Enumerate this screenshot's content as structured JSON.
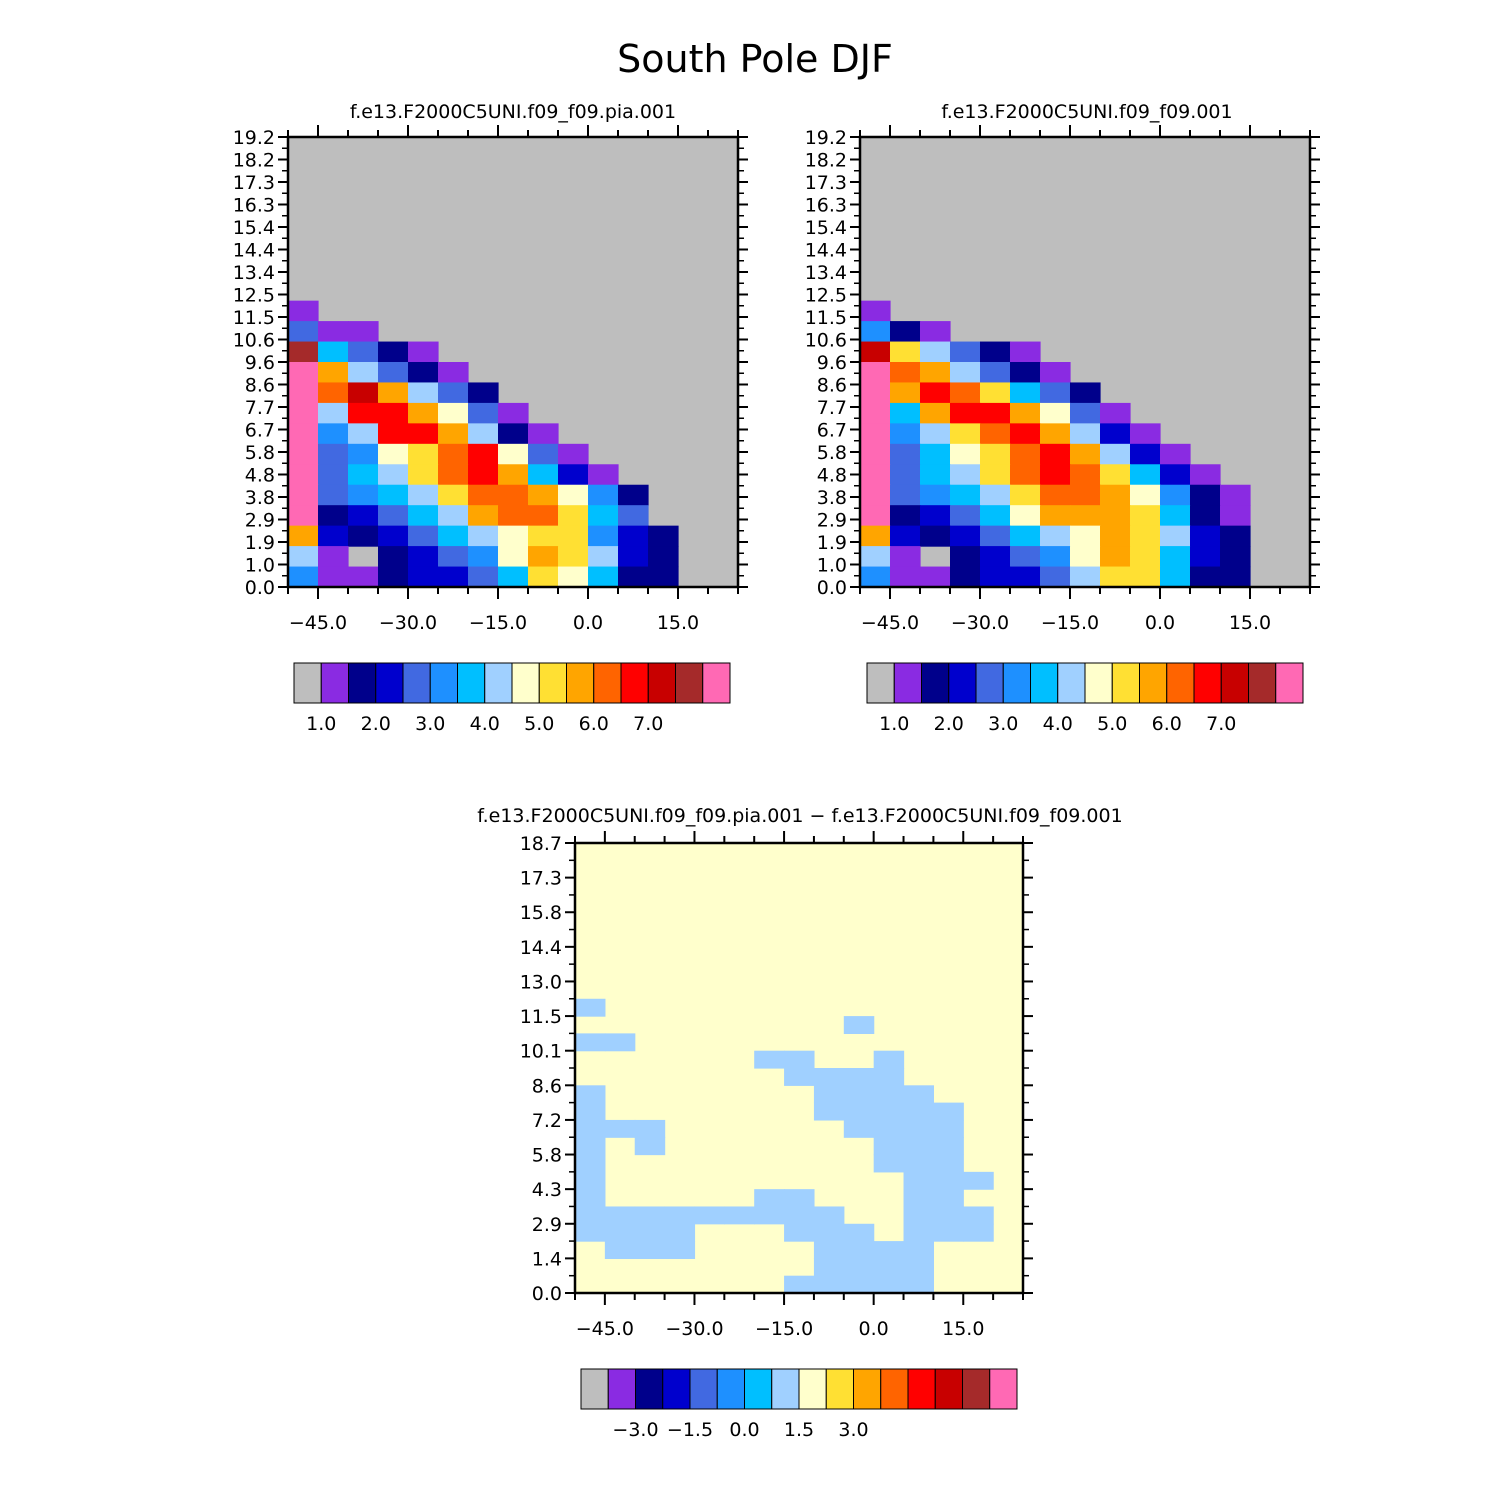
{
  "figure": {
    "title": "South Pole DJF"
  },
  "colors": {
    "palette": [
      "#bebebe",
      "#8a2be2",
      "#00008b",
      "#0000cd",
      "#4169e1",
      "#1e90ff",
      "#00bfff",
      "#a0d0ff",
      "#ffffcc",
      "#ffe033",
      "#ffa500",
      "#ff6400",
      "#ff0000",
      "#c80000",
      "#a52a2a",
      "#ff69b4"
    ],
    "gray": "#bebebe"
  },
  "chart_data": [
    {
      "type": "heatmap",
      "id": "panel-pia",
      "title": "f.e13.F2000C5UNI.f09_f09.pia.001",
      "xticks": [
        "−45.0",
        "−30.0",
        "−15.0",
        "0.0",
        "15.0"
      ],
      "yticks": [
        "0.0",
        "1.0",
        "1.9",
        "2.9",
        "3.8",
        "4.8",
        "5.8",
        "6.7",
        "7.7",
        "8.6",
        "9.6",
        "10.6",
        "11.5",
        "12.5",
        "13.4",
        "14.4",
        "15.4",
        "16.3",
        "17.3",
        "18.2",
        "19.2"
      ],
      "xrange": [
        -50,
        25
      ],
      "yrange": [
        0,
        19.2
      ],
      "colorbar_labels": [
        "1.0",
        "2.0",
        "3.0",
        "4.0",
        "5.0",
        "6.0",
        "7.0"
      ],
      "grid_note": "rows listed from top (y=19.2) to bottom (y=0.0); each row has 15 longitude bins; values are palette indices",
      "grid": [
        [
          0,
          0,
          0,
          0,
          0,
          0,
          0,
          0,
          0,
          0,
          0,
          0,
          0,
          0,
          0
        ],
        [
          0,
          0,
          0,
          0,
          0,
          0,
          0,
          0,
          0,
          0,
          0,
          0,
          0,
          0,
          0
        ],
        [
          0,
          0,
          0,
          0,
          0,
          0,
          0,
          0,
          0,
          0,
          0,
          0,
          0,
          0,
          0
        ],
        [
          0,
          0,
          0,
          0,
          0,
          0,
          0,
          0,
          0,
          0,
          0,
          0,
          0,
          0,
          0
        ],
        [
          0,
          0,
          0,
          0,
          0,
          0,
          0,
          0,
          0,
          0,
          0,
          0,
          0,
          0,
          0
        ],
        [
          0,
          0,
          0,
          0,
          0,
          0,
          0,
          0,
          0,
          0,
          0,
          0,
          0,
          0,
          0
        ],
        [
          0,
          0,
          0,
          0,
          0,
          0,
          0,
          0,
          0,
          0,
          0,
          0,
          0,
          0,
          0
        ],
        [
          0,
          0,
          0,
          0,
          0,
          0,
          0,
          0,
          0,
          0,
          0,
          0,
          0,
          0,
          0
        ],
        [
          1,
          0,
          0,
          0,
          0,
          0,
          0,
          0,
          0,
          0,
          0,
          0,
          0,
          0,
          0
        ],
        [
          4,
          1,
          1,
          0,
          0,
          0,
          0,
          0,
          0,
          0,
          0,
          0,
          0,
          0,
          0
        ],
        [
          14,
          6,
          4,
          2,
          1,
          0,
          0,
          0,
          0,
          0,
          0,
          0,
          0,
          0,
          0
        ],
        [
          15,
          10,
          7,
          4,
          2,
          1,
          0,
          0,
          0,
          0,
          0,
          0,
          0,
          0,
          0
        ],
        [
          15,
          11,
          13,
          10,
          7,
          4,
          2,
          0,
          0,
          0,
          0,
          0,
          0,
          0,
          0
        ],
        [
          15,
          7,
          12,
          12,
          10,
          8,
          4,
          1,
          0,
          0,
          0,
          0,
          0,
          0,
          0
        ],
        [
          15,
          5,
          7,
          12,
          12,
          10,
          7,
          2,
          1,
          0,
          0,
          0,
          0,
          0,
          0
        ],
        [
          15,
          4,
          5,
          8,
          9,
          11,
          12,
          8,
          4,
          1,
          0,
          0,
          0,
          0,
          0
        ],
        [
          15,
          4,
          6,
          7,
          9,
          11,
          12,
          10,
          6,
          3,
          1,
          0,
          0,
          0,
          0
        ],
        [
          15,
          4,
          5,
          6,
          7,
          9,
          11,
          11,
          10,
          8,
          5,
          2,
          0,
          0,
          0
        ],
        [
          15,
          2,
          3,
          4,
          6,
          7,
          10,
          11,
          11,
          9,
          6,
          4,
          0,
          0,
          0
        ],
        [
          10,
          3,
          2,
          3,
          4,
          6,
          7,
          8,
          9,
          9,
          5,
          3,
          2,
          0,
          0
        ],
        [
          7,
          1,
          0,
          2,
          3,
          4,
          5,
          8,
          10,
          9,
          7,
          3,
          2,
          0,
          0
        ],
        [
          5,
          1,
          1,
          2,
          3,
          3,
          4,
          6,
          9,
          8,
          6,
          2,
          2,
          0,
          0
        ]
      ]
    },
    {
      "type": "heatmap",
      "id": "panel-ctl",
      "title": "f.e13.F2000C5UNI.f09_f09.001",
      "xticks": [
        "−45.0",
        "−30.0",
        "−15.0",
        "0.0",
        "15.0"
      ],
      "yticks": [
        "0.0",
        "1.0",
        "1.9",
        "2.9",
        "3.8",
        "4.8",
        "5.8",
        "6.7",
        "7.7",
        "8.6",
        "9.6",
        "10.6",
        "11.5",
        "12.5",
        "13.4",
        "14.4",
        "15.4",
        "16.3",
        "17.3",
        "18.2",
        "19.2"
      ],
      "xrange": [
        -50,
        25
      ],
      "yrange": [
        0,
        19.2
      ],
      "colorbar_labels": [
        "1.0",
        "2.0",
        "3.0",
        "4.0",
        "5.0",
        "6.0",
        "7.0"
      ],
      "grid_note": "rows listed from top (y=19.2) to bottom (y=0.0); each row has 15 longitude bins; values are palette indices",
      "grid": [
        [
          0,
          0,
          0,
          0,
          0,
          0,
          0,
          0,
          0,
          0,
          0,
          0,
          0,
          0,
          0
        ],
        [
          0,
          0,
          0,
          0,
          0,
          0,
          0,
          0,
          0,
          0,
          0,
          0,
          0,
          0,
          0
        ],
        [
          0,
          0,
          0,
          0,
          0,
          0,
          0,
          0,
          0,
          0,
          0,
          0,
          0,
          0,
          0
        ],
        [
          0,
          0,
          0,
          0,
          0,
          0,
          0,
          0,
          0,
          0,
          0,
          0,
          0,
          0,
          0
        ],
        [
          0,
          0,
          0,
          0,
          0,
          0,
          0,
          0,
          0,
          0,
          0,
          0,
          0,
          0,
          0
        ],
        [
          0,
          0,
          0,
          0,
          0,
          0,
          0,
          0,
          0,
          0,
          0,
          0,
          0,
          0,
          0
        ],
        [
          0,
          0,
          0,
          0,
          0,
          0,
          0,
          0,
          0,
          0,
          0,
          0,
          0,
          0,
          0
        ],
        [
          0,
          0,
          0,
          0,
          0,
          0,
          0,
          0,
          0,
          0,
          0,
          0,
          0,
          0,
          0
        ],
        [
          1,
          0,
          0,
          0,
          0,
          0,
          0,
          0,
          0,
          0,
          0,
          0,
          0,
          0,
          0
        ],
        [
          5,
          2,
          1,
          0,
          0,
          0,
          0,
          0,
          0,
          0,
          0,
          0,
          0,
          0,
          0
        ],
        [
          13,
          9,
          7,
          4,
          2,
          1,
          0,
          0,
          0,
          0,
          0,
          0,
          0,
          0,
          0
        ],
        [
          15,
          11,
          10,
          7,
          4,
          2,
          1,
          0,
          0,
          0,
          0,
          0,
          0,
          0,
          0
        ],
        [
          15,
          10,
          12,
          11,
          9,
          6,
          4,
          2,
          0,
          0,
          0,
          0,
          0,
          0,
          0
        ],
        [
          15,
          6,
          10,
          12,
          12,
          10,
          8,
          4,
          1,
          0,
          0,
          0,
          0,
          0,
          0
        ],
        [
          15,
          5,
          7,
          9,
          11,
          12,
          10,
          7,
          3,
          1,
          0,
          0,
          0,
          0,
          0
        ],
        [
          15,
          4,
          6,
          8,
          9,
          11,
          12,
          10,
          7,
          3,
          1,
          0,
          0,
          0,
          0
        ],
        [
          15,
          4,
          6,
          7,
          9,
          11,
          12,
          11,
          9,
          6,
          3,
          1,
          0,
          0,
          0
        ],
        [
          15,
          4,
          5,
          6,
          7,
          9,
          11,
          11,
          10,
          8,
          5,
          2,
          1,
          0,
          0
        ],
        [
          15,
          2,
          3,
          4,
          6,
          8,
          10,
          10,
          10,
          9,
          6,
          2,
          1,
          0,
          0
        ],
        [
          10,
          3,
          2,
          3,
          4,
          6,
          7,
          8,
          10,
          9,
          7,
          3,
          2,
          0,
          0
        ],
        [
          7,
          1,
          0,
          2,
          3,
          4,
          5,
          8,
          10,
          9,
          6,
          3,
          2,
          0,
          0
        ],
        [
          5,
          1,
          1,
          2,
          3,
          3,
          4,
          7,
          9,
          9,
          6,
          2,
          2,
          0,
          0
        ]
      ]
    },
    {
      "type": "heatmap",
      "id": "panel-diff",
      "title": "f.e13.F2000C5UNI.f09_f09.pia.001 − f.e13.F2000C5UNI.f09_f09.001",
      "xticks": [
        "−45.0",
        "−30.0",
        "−15.0",
        "0.0",
        "15.0"
      ],
      "yticks": [
        "0.0",
        "1.4",
        "2.9",
        "4.3",
        "5.8",
        "7.2",
        "8.6",
        "10.1",
        "11.5",
        "13.0",
        "14.4",
        "15.8",
        "17.3",
        "18.7"
      ],
      "xrange": [
        -50,
        25
      ],
      "yrange": [
        0,
        19.2
      ],
      "colorbar_labels": [
        "−3.0",
        "−1.5",
        "0.0",
        "1.5",
        "3.0"
      ],
      "grid_note": "rows listed from top to bottom; 15 longitude bins; 0 = near-zero (light yellow), 1 = slightly negative (light blue)",
      "grid": [
        [
          0,
          0,
          0,
          0,
          0,
          0,
          0,
          0,
          0,
          0,
          0,
          0,
          0,
          0,
          0
        ],
        [
          0,
          0,
          0,
          0,
          0,
          0,
          0,
          0,
          0,
          0,
          0,
          0,
          0,
          0,
          0
        ],
        [
          0,
          0,
          0,
          0,
          0,
          0,
          0,
          0,
          0,
          0,
          0,
          0,
          0,
          0,
          0
        ],
        [
          0,
          0,
          0,
          0,
          0,
          0,
          0,
          0,
          0,
          0,
          0,
          0,
          0,
          0,
          0
        ],
        [
          0,
          0,
          0,
          0,
          0,
          0,
          0,
          0,
          0,
          0,
          0,
          0,
          0,
          0,
          0
        ],
        [
          0,
          0,
          0,
          0,
          0,
          0,
          0,
          0,
          0,
          0,
          0,
          0,
          0,
          0,
          0
        ],
        [
          0,
          0,
          0,
          0,
          0,
          0,
          0,
          0,
          0,
          0,
          0,
          0,
          0,
          0,
          0
        ],
        [
          0,
          0,
          0,
          0,
          0,
          0,
          0,
          0,
          0,
          0,
          0,
          0,
          0,
          0,
          0
        ],
        [
          0,
          0,
          0,
          0,
          0,
          0,
          0,
          0,
          0,
          0,
          0,
          0,
          0,
          0,
          0
        ],
        [
          1,
          0,
          0,
          0,
          0,
          0,
          0,
          0,
          0,
          0,
          0,
          0,
          0,
          0,
          0
        ],
        [
          0,
          0,
          0,
          0,
          0,
          0,
          0,
          0,
          0,
          1,
          0,
          0,
          0,
          0,
          0
        ],
        [
          1,
          1,
          0,
          0,
          0,
          0,
          0,
          0,
          0,
          0,
          0,
          0,
          0,
          0,
          0
        ],
        [
          0,
          0,
          0,
          0,
          0,
          0,
          1,
          1,
          0,
          0,
          1,
          0,
          0,
          0,
          0
        ],
        [
          0,
          0,
          0,
          0,
          0,
          0,
          0,
          1,
          1,
          1,
          1,
          0,
          0,
          0,
          0
        ],
        [
          1,
          0,
          0,
          0,
          0,
          0,
          0,
          0,
          1,
          1,
          1,
          1,
          0,
          0,
          0
        ],
        [
          1,
          0,
          0,
          0,
          0,
          0,
          0,
          0,
          1,
          1,
          1,
          1,
          1,
          0,
          0
        ],
        [
          1,
          1,
          1,
          0,
          0,
          0,
          0,
          0,
          0,
          1,
          1,
          1,
          1,
          0,
          0
        ],
        [
          1,
          0,
          1,
          0,
          0,
          0,
          0,
          0,
          0,
          0,
          1,
          1,
          1,
          0,
          0
        ],
        [
          1,
          0,
          0,
          0,
          0,
          0,
          0,
          0,
          0,
          0,
          1,
          1,
          1,
          0,
          0
        ],
        [
          1,
          0,
          0,
          0,
          0,
          0,
          0,
          0,
          0,
          0,
          0,
          1,
          1,
          1,
          0
        ],
        [
          1,
          0,
          0,
          0,
          0,
          0,
          1,
          1,
          0,
          0,
          0,
          1,
          1,
          0,
          0
        ],
        [
          1,
          1,
          1,
          1,
          1,
          1,
          1,
          1,
          1,
          0,
          0,
          1,
          1,
          1,
          0
        ],
        [
          1,
          1,
          1,
          1,
          0,
          0,
          0,
          1,
          1,
          1,
          0,
          1,
          1,
          1,
          0
        ],
        [
          0,
          1,
          1,
          1,
          0,
          0,
          0,
          0,
          1,
          1,
          1,
          1,
          0,
          0,
          0
        ],
        [
          0,
          0,
          0,
          0,
          0,
          0,
          0,
          0,
          1,
          1,
          1,
          1,
          0,
          0,
          0
        ],
        [
          0,
          0,
          0,
          0,
          0,
          0,
          0,
          1,
          1,
          1,
          1,
          1,
          0,
          0,
          0
        ]
      ]
    }
  ]
}
